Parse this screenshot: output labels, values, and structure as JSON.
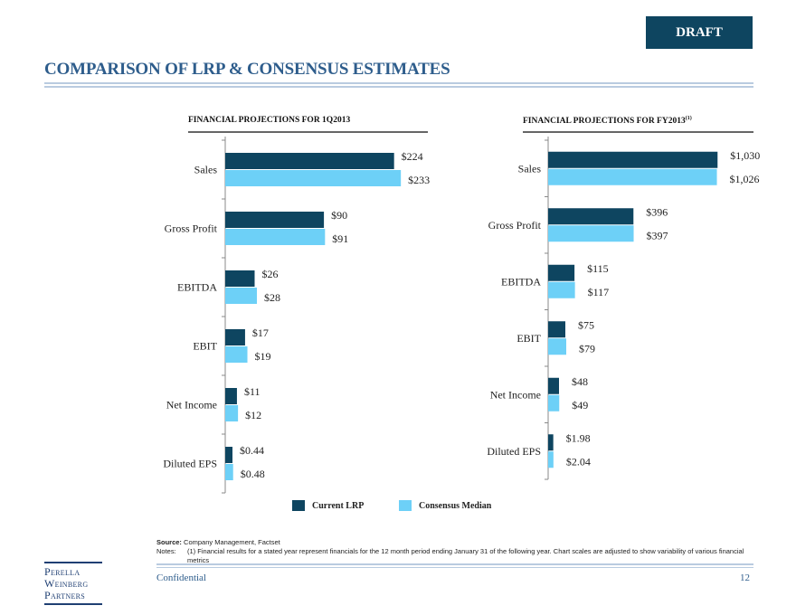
{
  "header": {
    "draft_badge": "DRAFT",
    "title": "COMPARISON OF LRP & CONSENSUS ESTIMATES"
  },
  "colors": {
    "current_lrp": "#0e4560",
    "consensus": "#6dd0f7",
    "title": "#2e5d8c"
  },
  "chart_data": [
    {
      "type": "bar",
      "orientation": "horizontal",
      "title": "FINANCIAL PROJECTIONS FOR 1Q2013",
      "title_sup": "",
      "categories": [
        "Sales",
        "Gross Profit",
        "EBITDA",
        "EBIT",
        "Net Income",
        "Diluted EPS"
      ],
      "series": [
        {
          "name": "Current LRP",
          "values": [
            224,
            90,
            26,
            17,
            11,
            0.44
          ],
          "labels": [
            "$224",
            "$90",
            "$26",
            "$17",
            "$11",
            "$0.44"
          ]
        },
        {
          "name": "Consensus Median",
          "values": [
            233,
            91,
            28,
            19,
            12,
            0.48
          ],
          "labels": [
            "$233",
            "$91",
            "$28",
            "$19",
            "$12",
            "$0.48"
          ]
        }
      ],
      "xlim_per_category": [
        [
          0,
          240
        ],
        [
          0,
          165
        ],
        [
          0,
          160
        ],
        [
          0,
          155
        ],
        [
          0,
          170
        ],
        [
          0,
          11
        ]
      ]
    },
    {
      "type": "bar",
      "orientation": "horizontal",
      "title": "FINANCIAL PROJECTIONS FOR FY2013",
      "title_sup": "(1)",
      "categories": [
        "Sales",
        "Gross Profit",
        "EBITDA",
        "EBIT",
        "Net Income",
        "Diluted EPS"
      ],
      "series": [
        {
          "name": "Current LRP",
          "values": [
            1030,
            396,
            115,
            75,
            48,
            1.98
          ],
          "labels": [
            "$1,030",
            "$396",
            "$115",
            "$75",
            "$48",
            "$1.98"
          ]
        },
        {
          "name": "Consensus Median",
          "values": [
            1026,
            397,
            117,
            79,
            49,
            2.04
          ],
          "labels": [
            "$1,026",
            "$397",
            "$117",
            "$79",
            "$49",
            "$2.04"
          ]
        }
      ],
      "xlim_per_category": [
        [
          0,
          1100
        ],
        [
          0,
          840
        ],
        [
          0,
          790
        ],
        [
          0,
          790
        ],
        [
          0,
          800
        ],
        [
          0,
          70
        ]
      ]
    }
  ],
  "legend": [
    "Current LRP",
    "Consensus Median"
  ],
  "footer": {
    "source_label": "Source:",
    "source_text": "Company Management, Factset",
    "notes_label": "Notes:",
    "notes_text": "(1) Financial results for a stated year represent financials for the 12 month period ending January 31 of the following year. Chart scales are adjusted to show variability of various financial metrics",
    "confidential": "Confidential",
    "page_number": "12",
    "logo": [
      "Perella",
      "Weinberg",
      "Partners"
    ]
  }
}
